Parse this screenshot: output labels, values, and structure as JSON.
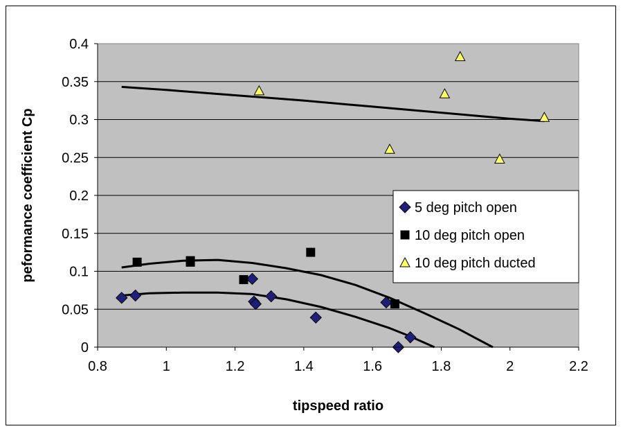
{
  "chart_data": {
    "type": "scatter",
    "title": "",
    "xlabel": "tipspeed ratio",
    "ylabel": "peformance coefficient Cp",
    "xlim": [
      0.8,
      2.2
    ],
    "ylim": [
      0,
      0.4
    ],
    "xticks": [
      "0.8",
      "1",
      "1.2",
      "1.4",
      "1.6",
      "1.8",
      "2",
      "2.2"
    ],
    "yticks": [
      "0",
      "0.05",
      "0.1",
      "0.15",
      "0.2",
      "0.25",
      "0.3",
      "0.35",
      "0.4"
    ],
    "grid": "horizontal",
    "plot_background": "#c0c0c0",
    "legend_position": "right",
    "series": [
      {
        "name": "5 deg pitch open",
        "marker": "diamond",
        "color": "#1f1f7a",
        "points": [
          [
            0.87,
            0.065
          ],
          [
            0.91,
            0.068
          ],
          [
            1.25,
            0.09
          ],
          [
            1.255,
            0.06
          ],
          [
            1.26,
            0.057
          ],
          [
            1.305,
            0.067
          ],
          [
            1.435,
            0.039
          ],
          [
            1.64,
            0.059
          ],
          [
            1.675,
            0.0
          ],
          [
            1.71,
            0.013
          ]
        ]
      },
      {
        "name": "10 deg pitch open",
        "marker": "square",
        "color": "#000000",
        "points": [
          [
            0.915,
            0.112
          ],
          [
            1.07,
            0.114
          ],
          [
            1.07,
            0.112
          ],
          [
            1.225,
            0.089
          ],
          [
            1.42,
            0.125
          ],
          [
            1.665,
            0.057
          ]
        ]
      },
      {
        "name": "10 deg pitch ducted",
        "marker": "triangle",
        "color": "#ffff66",
        "points": [
          [
            1.27,
            0.338
          ],
          [
            1.65,
            0.261
          ],
          [
            1.81,
            0.334
          ],
          [
            1.855,
            0.383
          ],
          [
            1.97,
            0.248
          ],
          [
            2.1,
            0.303
          ]
        ]
      }
    ],
    "trendlines": [
      {
        "points": [
          [
            0.87,
            0.068
          ],
          [
            0.95,
            0.071
          ],
          [
            1.05,
            0.072
          ],
          [
            1.15,
            0.072
          ],
          [
            1.25,
            0.07
          ],
          [
            1.35,
            0.063
          ],
          [
            1.45,
            0.053
          ],
          [
            1.55,
            0.04
          ],
          [
            1.65,
            0.025
          ],
          [
            1.7,
            0.016
          ],
          [
            1.75,
            0.006
          ],
          [
            1.78,
            0.0
          ]
        ]
      },
      {
        "points": [
          [
            0.87,
            0.105
          ],
          [
            0.95,
            0.11
          ],
          [
            1.05,
            0.114
          ],
          [
            1.15,
            0.115
          ],
          [
            1.25,
            0.111
          ],
          [
            1.35,
            0.104
          ],
          [
            1.45,
            0.095
          ],
          [
            1.55,
            0.082
          ],
          [
            1.65,
            0.065
          ],
          [
            1.75,
            0.045
          ],
          [
            1.85,
            0.024
          ],
          [
            1.9,
            0.012
          ],
          [
            1.95,
            0.0
          ]
        ]
      },
      {
        "points": [
          [
            0.87,
            0.343
          ],
          [
            1.0,
            0.339
          ],
          [
            1.2,
            0.332
          ],
          [
            1.4,
            0.325
          ],
          [
            1.6,
            0.317
          ],
          [
            1.8,
            0.309
          ],
          [
            2.0,
            0.301
          ],
          [
            2.1,
            0.298
          ]
        ]
      }
    ]
  }
}
